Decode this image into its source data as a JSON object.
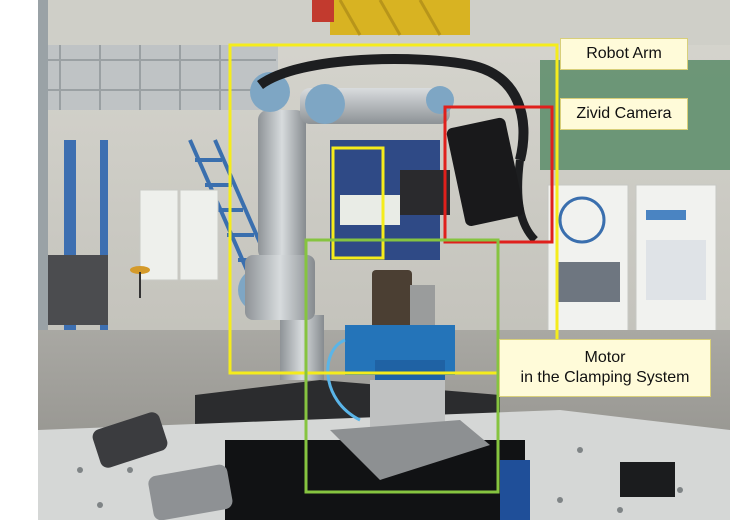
{
  "annotations": {
    "robot_arm": {
      "label": "Robot Arm",
      "color": "#f5ec1c"
    },
    "camera": {
      "label": "Zivid Camera",
      "color": "#e0201c"
    },
    "motor": {
      "line1": "Motor",
      "line2": "in the Clamping System",
      "color": "#86c440"
    }
  }
}
